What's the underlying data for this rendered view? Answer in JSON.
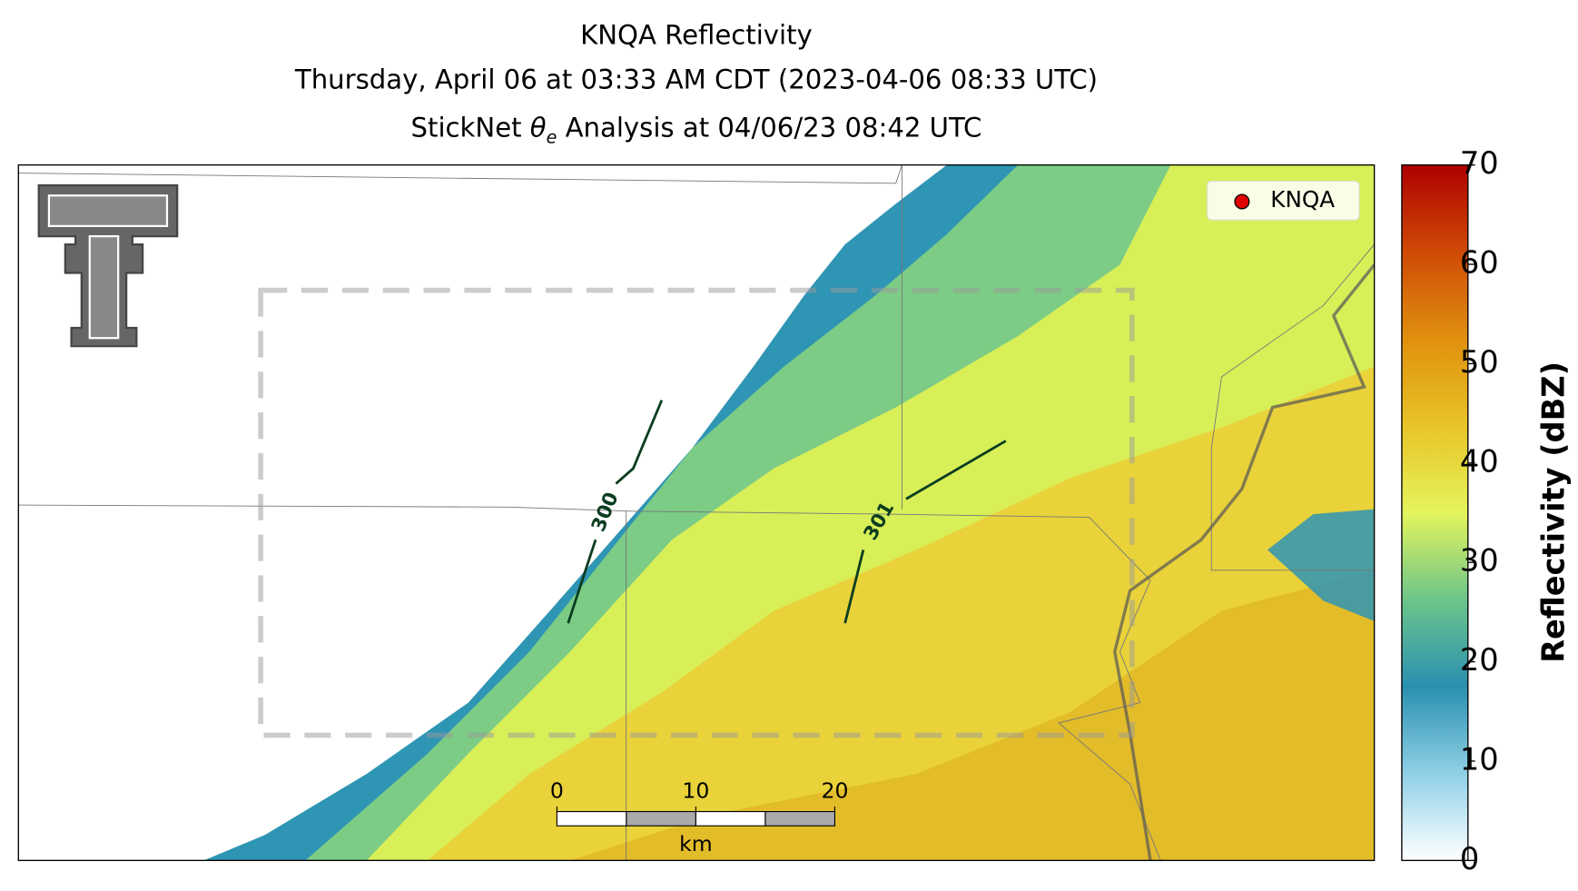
{
  "chart_data": {
    "type": "radar-map",
    "title": [
      "KNQA Reflectivity",
      "Thursday, April 06 at 03:33 AM CDT (2023-04-06 08:33 UTC)"
    ],
    "title_line3": [
      "StickNet ",
      "θ",
      "e",
      " Analysis at 04/06/23 08:42 UTC"
    ],
    "legend": "KNQA",
    "contours": [
      "300",
      "301"
    ],
    "scalebar": {
      "ticks": [
        0,
        10,
        20
      ],
      "lim": [
        0,
        20
      ],
      "unit": "km"
    },
    "colorbar": {
      "label": "Reflectivity (dBZ)",
      "lim": [
        0,
        70
      ],
      "ticks": [
        0,
        10,
        20,
        30,
        40,
        50,
        60,
        70
      ],
      "colors": [
        "#ffffff",
        "#8fd0e6",
        "#2a90b0",
        "#6cc58a",
        "#e4f45c",
        "#e8c428",
        "#e0900e",
        "#cf4a06",
        "#ae0000"
      ]
    }
  }
}
